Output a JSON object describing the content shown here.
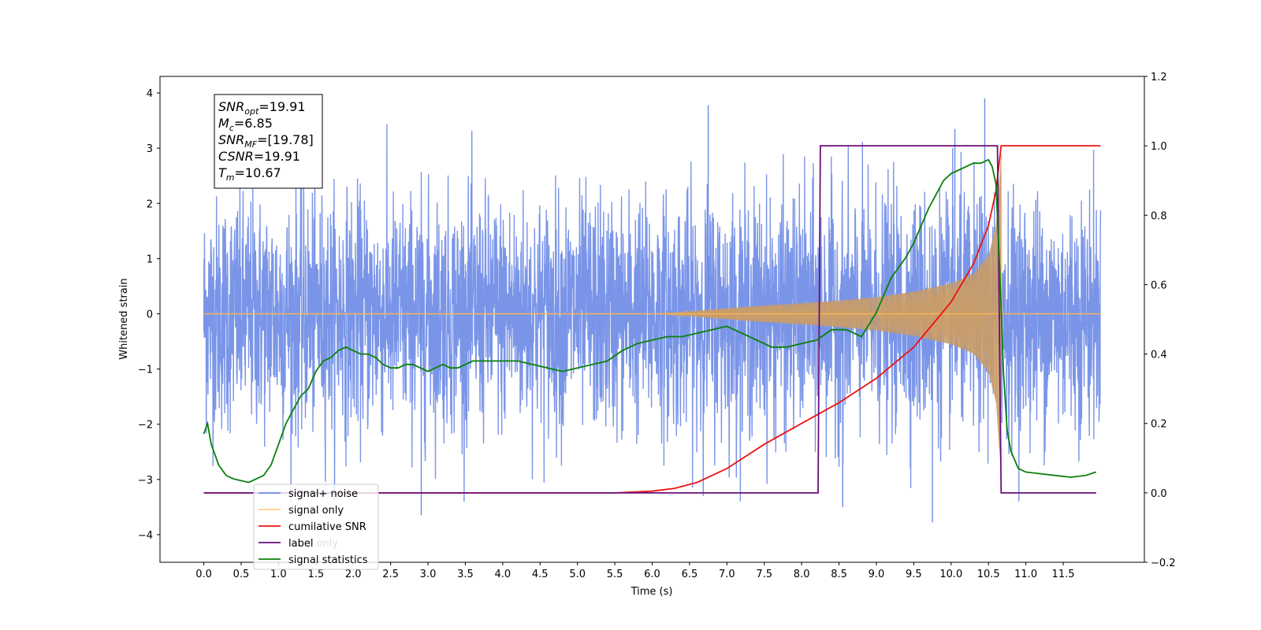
{
  "chart_data": {
    "type": "line",
    "xlabel": "Time (s)",
    "ylabel": "Whitened strain",
    "xlim": [
      -0.5859,
      12.5859
    ],
    "ylim_left": [
      -4.5,
      4.3
    ],
    "ylim_right": [
      -0.2,
      1.2
    ],
    "x_ticks": [
      "0.0",
      "0.5",
      "1.0",
      "1.5",
      "2.0",
      "2.5",
      "3.0",
      "3.5",
      "4.0",
      "4.5",
      "5.0",
      "5.5",
      "6.0",
      "6.5",
      "7.0",
      "7.5",
      "8.0",
      "8.5",
      "9.0",
      "9.5",
      "10.0",
      "10.5",
      "11.0",
      "11.5"
    ],
    "y_ticks_left": [
      "4",
      "3",
      "2",
      "1",
      "0",
      "−1",
      "−2",
      "−3",
      "−4"
    ],
    "y_ticks_right": [
      "1.2",
      "1.0",
      "0.8",
      "0.6",
      "0.4",
      "0.2",
      "0.0",
      "−0.2"
    ],
    "grid": false,
    "legend_position": "lower-left",
    "annotation": [
      {
        "sym": "SNR",
        "sub": "opt",
        "val": "=19.91"
      },
      {
        "sym": "M",
        "sub": "c",
        "val": "=6.85"
      },
      {
        "sym": "SNR",
        "sub": "MF",
        "val": "=[19.78]"
      },
      {
        "sym": "CSNR",
        "sub": "",
        "val": "=19.91"
      },
      {
        "sym": "T",
        "sub": "m",
        "val": "=10.67"
      }
    ],
    "series": [
      {
        "name": "signal+ noise",
        "axis": "left",
        "color": "#6b8ae6",
        "description_value": "stochastic whitened noise, approx. zero mean, amplitude ~ ±2.5, extremes ~ ±3.8",
        "x_range": [
          0.0,
          12.0
        ],
        "notable_peaks": [
          [
            2.91,
            -3.65
          ],
          [
            10.45,
            3.9
          ],
          [
            9.75,
            -3.78
          ],
          [
            10.05,
            3.35
          ],
          [
            6.75,
            3.78
          ],
          [
            8.55,
            -3.5
          ]
        ]
      },
      {
        "name": "signal only",
        "axis": "left",
        "color": "#ffb74d",
        "description_value": "chirp signal; envelope amplitude over time",
        "envelope": {
          "x": [
            0.0,
            6.0,
            6.5,
            7.0,
            7.5,
            8.0,
            8.5,
            9.0,
            9.5,
            10.0,
            10.3,
            10.5,
            10.6,
            10.67,
            10.68,
            12.0
          ],
          "y": [
            0.0,
            0.0,
            0.04,
            0.1,
            0.15,
            0.19,
            0.24,
            0.3,
            0.4,
            0.55,
            0.72,
            1.05,
            1.6,
            2.9,
            0.0,
            0.0
          ]
        }
      },
      {
        "name": "cumilative SNR",
        "axis": "right",
        "color": "#ee1111",
        "x": [
          0.0,
          5.5,
          6.0,
          6.3,
          6.6,
          7.0,
          7.5,
          8.0,
          8.5,
          9.0,
          9.5,
          10.0,
          10.3,
          10.5,
          10.6,
          10.67,
          11.0,
          12.0
        ],
        "y": [
          0.0,
          0.0,
          0.005,
          0.013,
          0.03,
          0.07,
          0.14,
          0.2,
          0.26,
          0.33,
          0.42,
          0.55,
          0.66,
          0.77,
          0.87,
          1.0,
          1.0,
          1.0
        ]
      },
      {
        "name": "label",
        "axis": "right",
        "color": "#6a0f7a",
        "x": [
          0.0,
          8.22,
          8.25,
          10.62,
          10.67,
          11.94
        ],
        "y": [
          0.0,
          0.0,
          1.0,
          1.0,
          0.0,
          0.0
        ]
      },
      {
        "name": "signal statistics",
        "axis": "right",
        "color": "#0a800a",
        "x": [
          0.0,
          0.05,
          0.1,
          0.2,
          0.3,
          0.4,
          0.5,
          0.6,
          0.7,
          0.8,
          0.9,
          1.0,
          1.1,
          1.2,
          1.3,
          1.4,
          1.5,
          1.6,
          1.7,
          1.8,
          1.9,
          2.0,
          2.1,
          2.2,
          2.3,
          2.4,
          2.5,
          2.6,
          2.7,
          2.8,
          2.9,
          3.0,
          3.1,
          3.2,
          3.3,
          3.4,
          3.5,
          3.6,
          3.7,
          3.8,
          3.9,
          4.0,
          4.2,
          4.4,
          4.6,
          4.8,
          5.0,
          5.2,
          5.4,
          5.6,
          5.8,
          6.0,
          6.2,
          6.4,
          6.6,
          6.8,
          7.0,
          7.2,
          7.4,
          7.6,
          7.8,
          8.0,
          8.2,
          8.4,
          8.6,
          8.8,
          9.0,
          9.1,
          9.2,
          9.3,
          9.4,
          9.5,
          9.6,
          9.7,
          9.8,
          9.9,
          10.0,
          10.1,
          10.2,
          10.3,
          10.4,
          10.5,
          10.55,
          10.6,
          10.65,
          10.7,
          10.75,
          10.8,
          10.9,
          11.0,
          11.2,
          11.4,
          11.6,
          11.8,
          11.94
        ],
        "y": [
          0.17,
          0.2,
          0.14,
          0.08,
          0.05,
          0.04,
          0.035,
          0.03,
          0.04,
          0.05,
          0.08,
          0.14,
          0.2,
          0.24,
          0.28,
          0.3,
          0.35,
          0.38,
          0.39,
          0.41,
          0.42,
          0.41,
          0.4,
          0.4,
          0.39,
          0.37,
          0.36,
          0.36,
          0.37,
          0.37,
          0.36,
          0.35,
          0.36,
          0.37,
          0.36,
          0.36,
          0.37,
          0.38,
          0.38,
          0.38,
          0.38,
          0.38,
          0.38,
          0.37,
          0.36,
          0.35,
          0.36,
          0.37,
          0.38,
          0.41,
          0.43,
          0.44,
          0.45,
          0.45,
          0.46,
          0.47,
          0.48,
          0.46,
          0.44,
          0.42,
          0.42,
          0.43,
          0.44,
          0.47,
          0.47,
          0.45,
          0.52,
          0.57,
          0.62,
          0.65,
          0.68,
          0.72,
          0.77,
          0.82,
          0.86,
          0.9,
          0.92,
          0.93,
          0.94,
          0.95,
          0.95,
          0.96,
          0.94,
          0.89,
          0.65,
          0.35,
          0.18,
          0.12,
          0.07,
          0.06,
          0.055,
          0.05,
          0.045,
          0.05,
          0.06
        ]
      }
    ],
    "legend_entries": [
      "signal+ noise",
      "signal only",
      "cumilative SNR",
      "label",
      "signal statistics"
    ],
    "legend_overlapped_text": "label only"
  }
}
